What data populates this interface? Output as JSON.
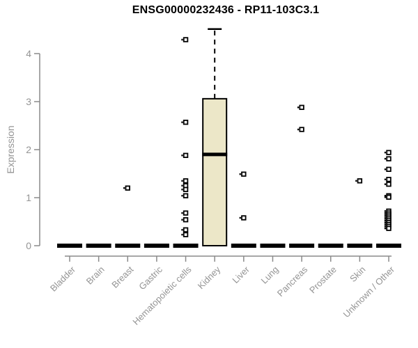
{
  "chart_data": {
    "type": "boxplot",
    "title": "ENSG00000232436 - RP11-103C3.1",
    "xlabel": "",
    "ylabel": "Expression",
    "ylim": [
      0,
      4.6
    ],
    "yticks": [
      0,
      1,
      2,
      3,
      4
    ],
    "grid": false,
    "legend": "none",
    "categories": [
      "Bladder",
      "Brain",
      "Breast",
      "Gastric",
      "Hematopoietic cells",
      "Kidney",
      "Liver",
      "Lung",
      "Pancreas",
      "Prostate",
      "Skin",
      "Unknown / Other"
    ],
    "boxes": [
      {
        "category": "Bladder",
        "q1": 0,
        "median": 0,
        "q3": 0,
        "whisker_low": 0,
        "whisker_high": 0,
        "outliers": []
      },
      {
        "category": "Brain",
        "q1": 0,
        "median": 0,
        "q3": 0,
        "whisker_low": 0,
        "whisker_high": 0,
        "outliers": []
      },
      {
        "category": "Breast",
        "q1": 0,
        "median": 0,
        "q3": 0,
        "whisker_low": 0,
        "whisker_high": 0,
        "outliers": [
          1.2
        ]
      },
      {
        "category": "Gastric",
        "q1": 0,
        "median": 0,
        "q3": 0,
        "whisker_low": 0,
        "whisker_high": 0,
        "outliers": []
      },
      {
        "category": "Hematopoietic cells",
        "q1": 0,
        "median": 0,
        "q3": 0,
        "whisker_low": 0,
        "whisker_high": 0,
        "outliers": [
          4.29,
          2.57,
          1.88,
          1.35,
          1.25,
          1.17,
          1.04,
          0.68,
          0.54,
          0.33,
          0.23
        ]
      },
      {
        "category": "Kidney",
        "q1": 0,
        "median": 1.9,
        "q3": 3.06,
        "whisker_low": 0,
        "whisker_high": 4.51,
        "outliers": []
      },
      {
        "category": "Liver",
        "q1": 0,
        "median": 0,
        "q3": 0,
        "whisker_low": 0,
        "whisker_high": 0,
        "outliers": [
          1.49,
          0.58
        ]
      },
      {
        "category": "Lung",
        "q1": 0,
        "median": 0,
        "q3": 0,
        "whisker_low": 0,
        "whisker_high": 0,
        "outliers": []
      },
      {
        "category": "Pancreas",
        "q1": 0,
        "median": 0,
        "q3": 0,
        "whisker_low": 0,
        "whisker_high": 0,
        "outliers": [
          2.88,
          2.42
        ]
      },
      {
        "category": "Prostate",
        "q1": 0,
        "median": 0,
        "q3": 0,
        "whisker_low": 0,
        "whisker_high": 0,
        "outliers": []
      },
      {
        "category": "Skin",
        "q1": 0,
        "median": 0,
        "q3": 0,
        "whisker_low": 0,
        "whisker_high": 0,
        "outliers": [
          1.35
        ]
      },
      {
        "category": "Unknown / Other",
        "q1": 0,
        "median": 0,
        "q3": 0,
        "whisker_low": 0,
        "whisker_high": 0,
        "outliers": [
          1.94,
          1.81,
          1.59,
          1.38,
          1.28,
          1.04,
          1.01,
          0.72,
          0.68,
          0.64,
          0.6,
          0.56,
          0.52,
          0.48,
          0.44,
          0.4,
          0.36
        ]
      }
    ],
    "colors": {
      "box_fill": "#ece7c8",
      "box_stroke": "#000000",
      "median": "#000000",
      "outlier": "#000000",
      "axis": "#8a8a8a",
      "tick_label": "#949494",
      "title": "#000000",
      "background": "#ffffff"
    }
  }
}
